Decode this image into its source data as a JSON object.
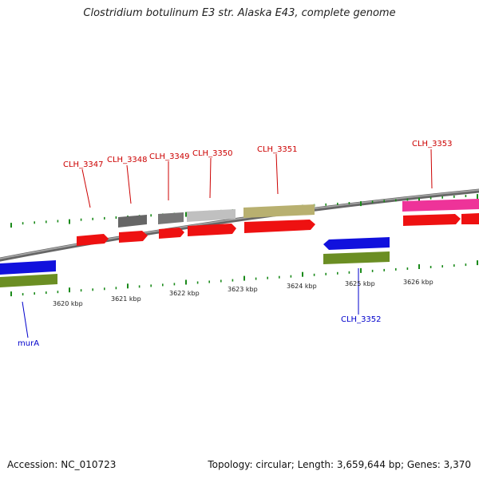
{
  "title": "Clostridium botulinum E3 str. Alaska E43, complete genome",
  "footer": {
    "accession": "Accession: NC_010723",
    "topology": "Topology: circular; Length: 3,659,644 bp; Genes: 3,370"
  },
  "scale_labels": [
    "3620 kbp",
    "3621 kbp",
    "3622 kbp",
    "3623 kbp",
    "3624 kbp",
    "3625 kbp",
    "3626 kbp"
  ],
  "gene_labels": [
    {
      "name": "CLH_3347",
      "strand": "forward",
      "color": "#cc0000"
    },
    {
      "name": "CLH_3348",
      "strand": "forward",
      "color": "#cc0000"
    },
    {
      "name": "CLH_3349",
      "strand": "forward",
      "color": "#cc0000"
    },
    {
      "name": "CLH_3350",
      "strand": "forward",
      "color": "#cc0000"
    },
    {
      "name": "CLH_3351",
      "strand": "forward",
      "color": "#cc0000"
    },
    {
      "name": "CLH_3353",
      "strand": "forward",
      "color": "#cc0000"
    },
    {
      "name": "CLH_3352",
      "strand": "reverse",
      "color": "#0000cc"
    },
    {
      "name": "murA",
      "strand": "reverse",
      "color": "#0000cc"
    }
  ],
  "colors": {
    "forward_gene": "#ee1111",
    "reverse_gene": "#1111dd",
    "backbone": "#888888",
    "tick": "#1a8a1a",
    "cog_olive": "#6b8e23",
    "cog_gray_dark": "#666666",
    "cog_gray_light": "#c0c0c0",
    "cog_khaki": "#b8b070",
    "cog_pink": "#ee3399"
  }
}
